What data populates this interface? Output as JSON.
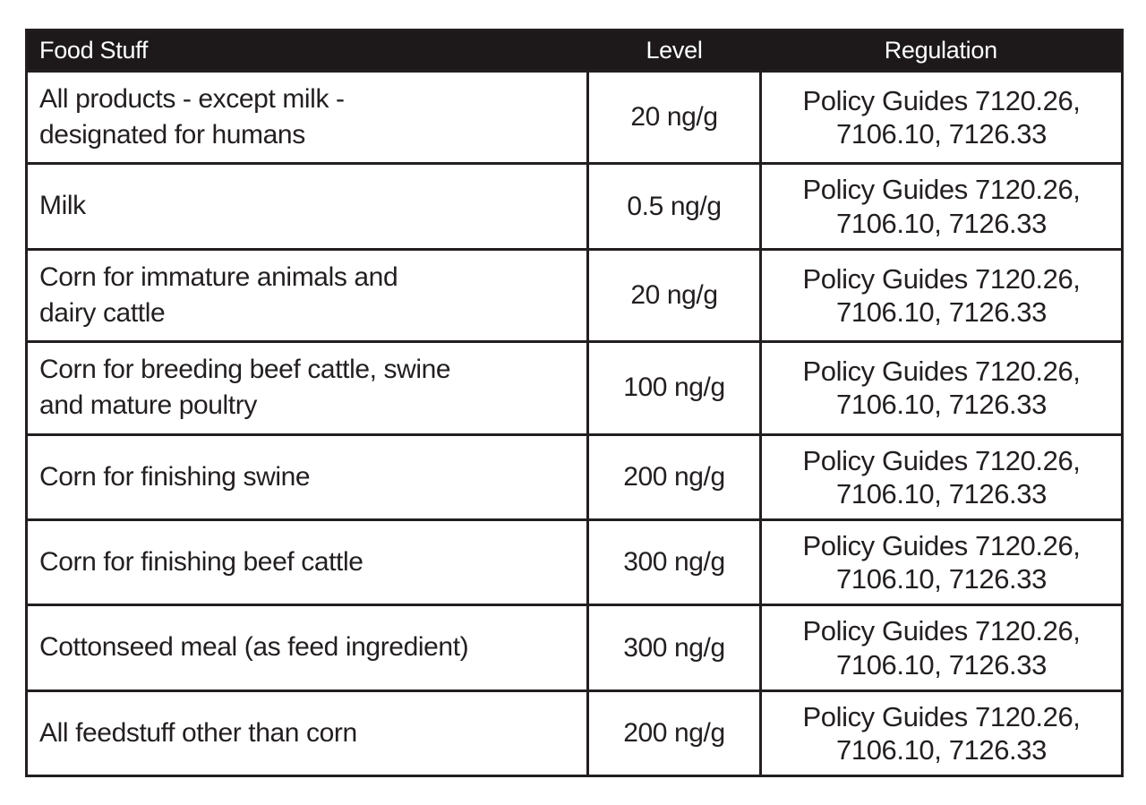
{
  "table": {
    "columns": [
      {
        "label": "Food Stuff"
      },
      {
        "label": "Level"
      },
      {
        "label": "Regulation"
      }
    ],
    "rows": [
      {
        "food": "All products - except milk -\ndesignated for humans",
        "level": "20 ng/g",
        "regulation": "Policy Guides 7120.26,\n7106.10, 7126.33"
      },
      {
        "food": "Milk",
        "level": "0.5 ng/g",
        "regulation": "Policy Guides 7120.26,\n7106.10, 7126.33"
      },
      {
        "food": "Corn for immature animals and\ndairy cattle",
        "level": "20 ng/g",
        "regulation": "Policy Guides 7120.26,\n7106.10, 7126.33"
      },
      {
        "food": "Corn for breeding beef cattle, swine\nand mature poultry",
        "level": "100 ng/g",
        "regulation": "Policy Guides 7120.26,\n7106.10, 7126.33"
      },
      {
        "food": "Corn for finishing swine",
        "level": "200 ng/g",
        "regulation": "Policy Guides 7120.26,\n7106.10, 7126.33"
      },
      {
        "food": "Corn for finishing beef cattle",
        "level": "300 ng/g",
        "regulation": "Policy Guides 7120.26,\n7106.10, 7126.33"
      },
      {
        "food": "Cottonseed meal (as feed ingredient)",
        "level": "300 ng/g",
        "regulation": "Policy Guides 7120.26,\n7106.10, 7126.33"
      },
      {
        "food": "All feedstuff other than corn",
        "level": "200 ng/g",
        "regulation": "Policy Guides 7120.26,\n7106.10, 7126.33"
      }
    ]
  },
  "colors": {
    "header_bg": "#1d191a",
    "header_text": "#ffffff",
    "body_text": "#231f20",
    "border": "#231f20",
    "page_bg": "#ffffff"
  }
}
